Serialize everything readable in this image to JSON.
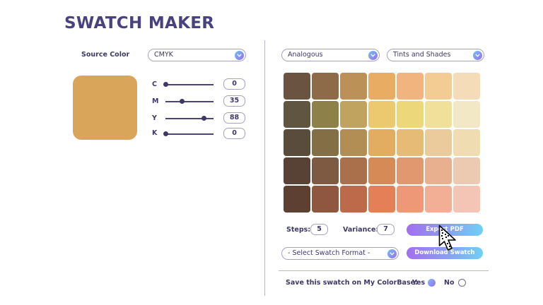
{
  "app": {
    "title": "SWATCH MAKER"
  },
  "source": {
    "label": "Source Color",
    "mode": "CMYK",
    "preview_color": "#d9a55b",
    "channels": [
      {
        "name": "C",
        "value": "0"
      },
      {
        "name": "M",
        "value": "35"
      },
      {
        "name": "Y",
        "value": "88"
      },
      {
        "name": "K",
        "value": "0"
      }
    ]
  },
  "harmony": {
    "selected": "Analogous"
  },
  "variation": {
    "selected": "Tints and Shades"
  },
  "swatches": [
    [
      "#6a5340",
      "#8d6b48",
      "#bb9157",
      "#e8ac63",
      "#f1b47f",
      "#f3cc93",
      "#f5dcb9"
    ],
    [
      "#5f5540",
      "#8e8049",
      "#bfa35f",
      "#ecc96e",
      "#ecd87b",
      "#f1e09a",
      "#f3e8c6"
    ],
    [
      "#5a4c3b",
      "#846e45",
      "#b28d54",
      "#e2ad61",
      "#e5bb76",
      "#ebcb9b",
      "#efdcb1"
    ],
    [
      "#584235",
      "#7d5a41",
      "#a9704b",
      "#d68a56",
      "#e1986e",
      "#e8b08e",
      "#ecc9b1"
    ],
    [
      "#5e4032",
      "#8f5640",
      "#bd6a4a",
      "#e57f57",
      "#ef9878",
      "#f3ae96",
      "#f4c5b4"
    ]
  ],
  "steps": {
    "label": "Steps:",
    "value": "5"
  },
  "variance": {
    "label": "Variance:",
    "value": "7"
  },
  "export_button": {
    "label": "Export PDF"
  },
  "format_select": {
    "selected": "- Select Swatch Format -"
  },
  "download_button": {
    "label": "Download Swatch"
  },
  "save": {
    "question": "Save this swatch on My ColorBase:",
    "yes": "Yes",
    "no": "No",
    "selected": "Yes"
  },
  "colors": {
    "accent_purple": "#9d6af0",
    "accent_blue": "#6ec3f2",
    "text": "#3d3868"
  }
}
